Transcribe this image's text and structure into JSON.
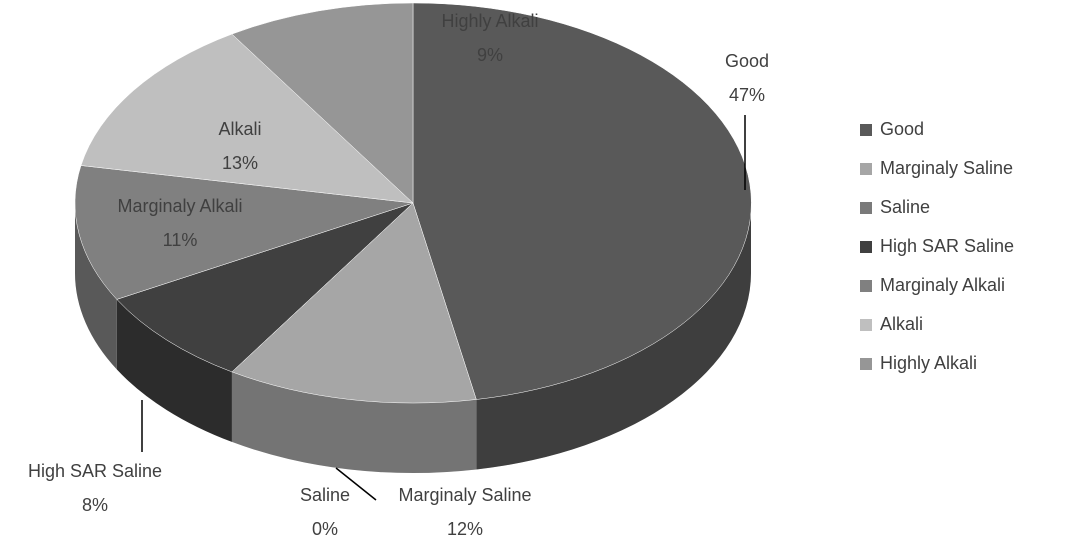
{
  "chart_data": {
    "type": "pie",
    "categories": [
      "Good",
      "Marginaly Saline",
      "Saline",
      "High SAR Saline",
      "Marginaly Alkali",
      "Alkali",
      "Highly Alkali"
    ],
    "values": [
      47,
      12,
      0,
      8,
      11,
      13,
      9
    ],
    "value_labels": [
      "47%",
      "12%",
      "0%",
      "8%",
      "11%",
      "13%",
      "9%"
    ],
    "colors": [
      "#595959",
      "#a6a6a6",
      "#7a7a7a",
      "#404040",
      "#808080",
      "#bfbfbf",
      "#969696"
    ],
    "legend": "right"
  }
}
